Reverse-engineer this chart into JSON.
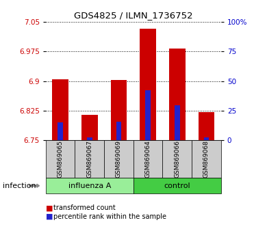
{
  "title": "GDS4825 / ILMN_1736752",
  "categories": [
    "GSM869065",
    "GSM869067",
    "GSM869069",
    "GSM869064",
    "GSM869066",
    "GSM869068"
  ],
  "group_labels": [
    "influenza A",
    "control"
  ],
  "factor_label": "infection",
  "ylim": [
    6.75,
    7.05
  ],
  "yticks": [
    6.75,
    6.825,
    6.9,
    6.975,
    7.05
  ],
  "ytick_labels": [
    "6.75",
    "6.825",
    "6.9",
    "6.975",
    "7.05"
  ],
  "y2ticks": [
    0,
    25,
    50,
    75,
    100
  ],
  "y2tick_labels": [
    "0",
    "25",
    "50",
    "75",
    "100%"
  ],
  "red_tops": [
    6.905,
    6.815,
    6.902,
    7.032,
    6.982,
    6.822
  ],
  "blue_tops": [
    6.796,
    6.757,
    6.797,
    6.876,
    6.838,
    6.758
  ],
  "base": 6.75,
  "bar_width": 0.55,
  "blue_bar_width": 0.18,
  "red_color": "#cc0000",
  "blue_color": "#2222cc",
  "bg_color": "#ffffff",
  "plot_bg": "#ffffff",
  "influenza_color": "#99ee99",
  "control_color": "#44cc44",
  "tick_color_left": "#cc0000",
  "tick_color_right": "#0000cc",
  "grid_color": "#000000",
  "xticklabel_bg": "#cccccc",
  "legend_red_label": "transformed count",
  "legend_blue_label": "percentile rank within the sample"
}
